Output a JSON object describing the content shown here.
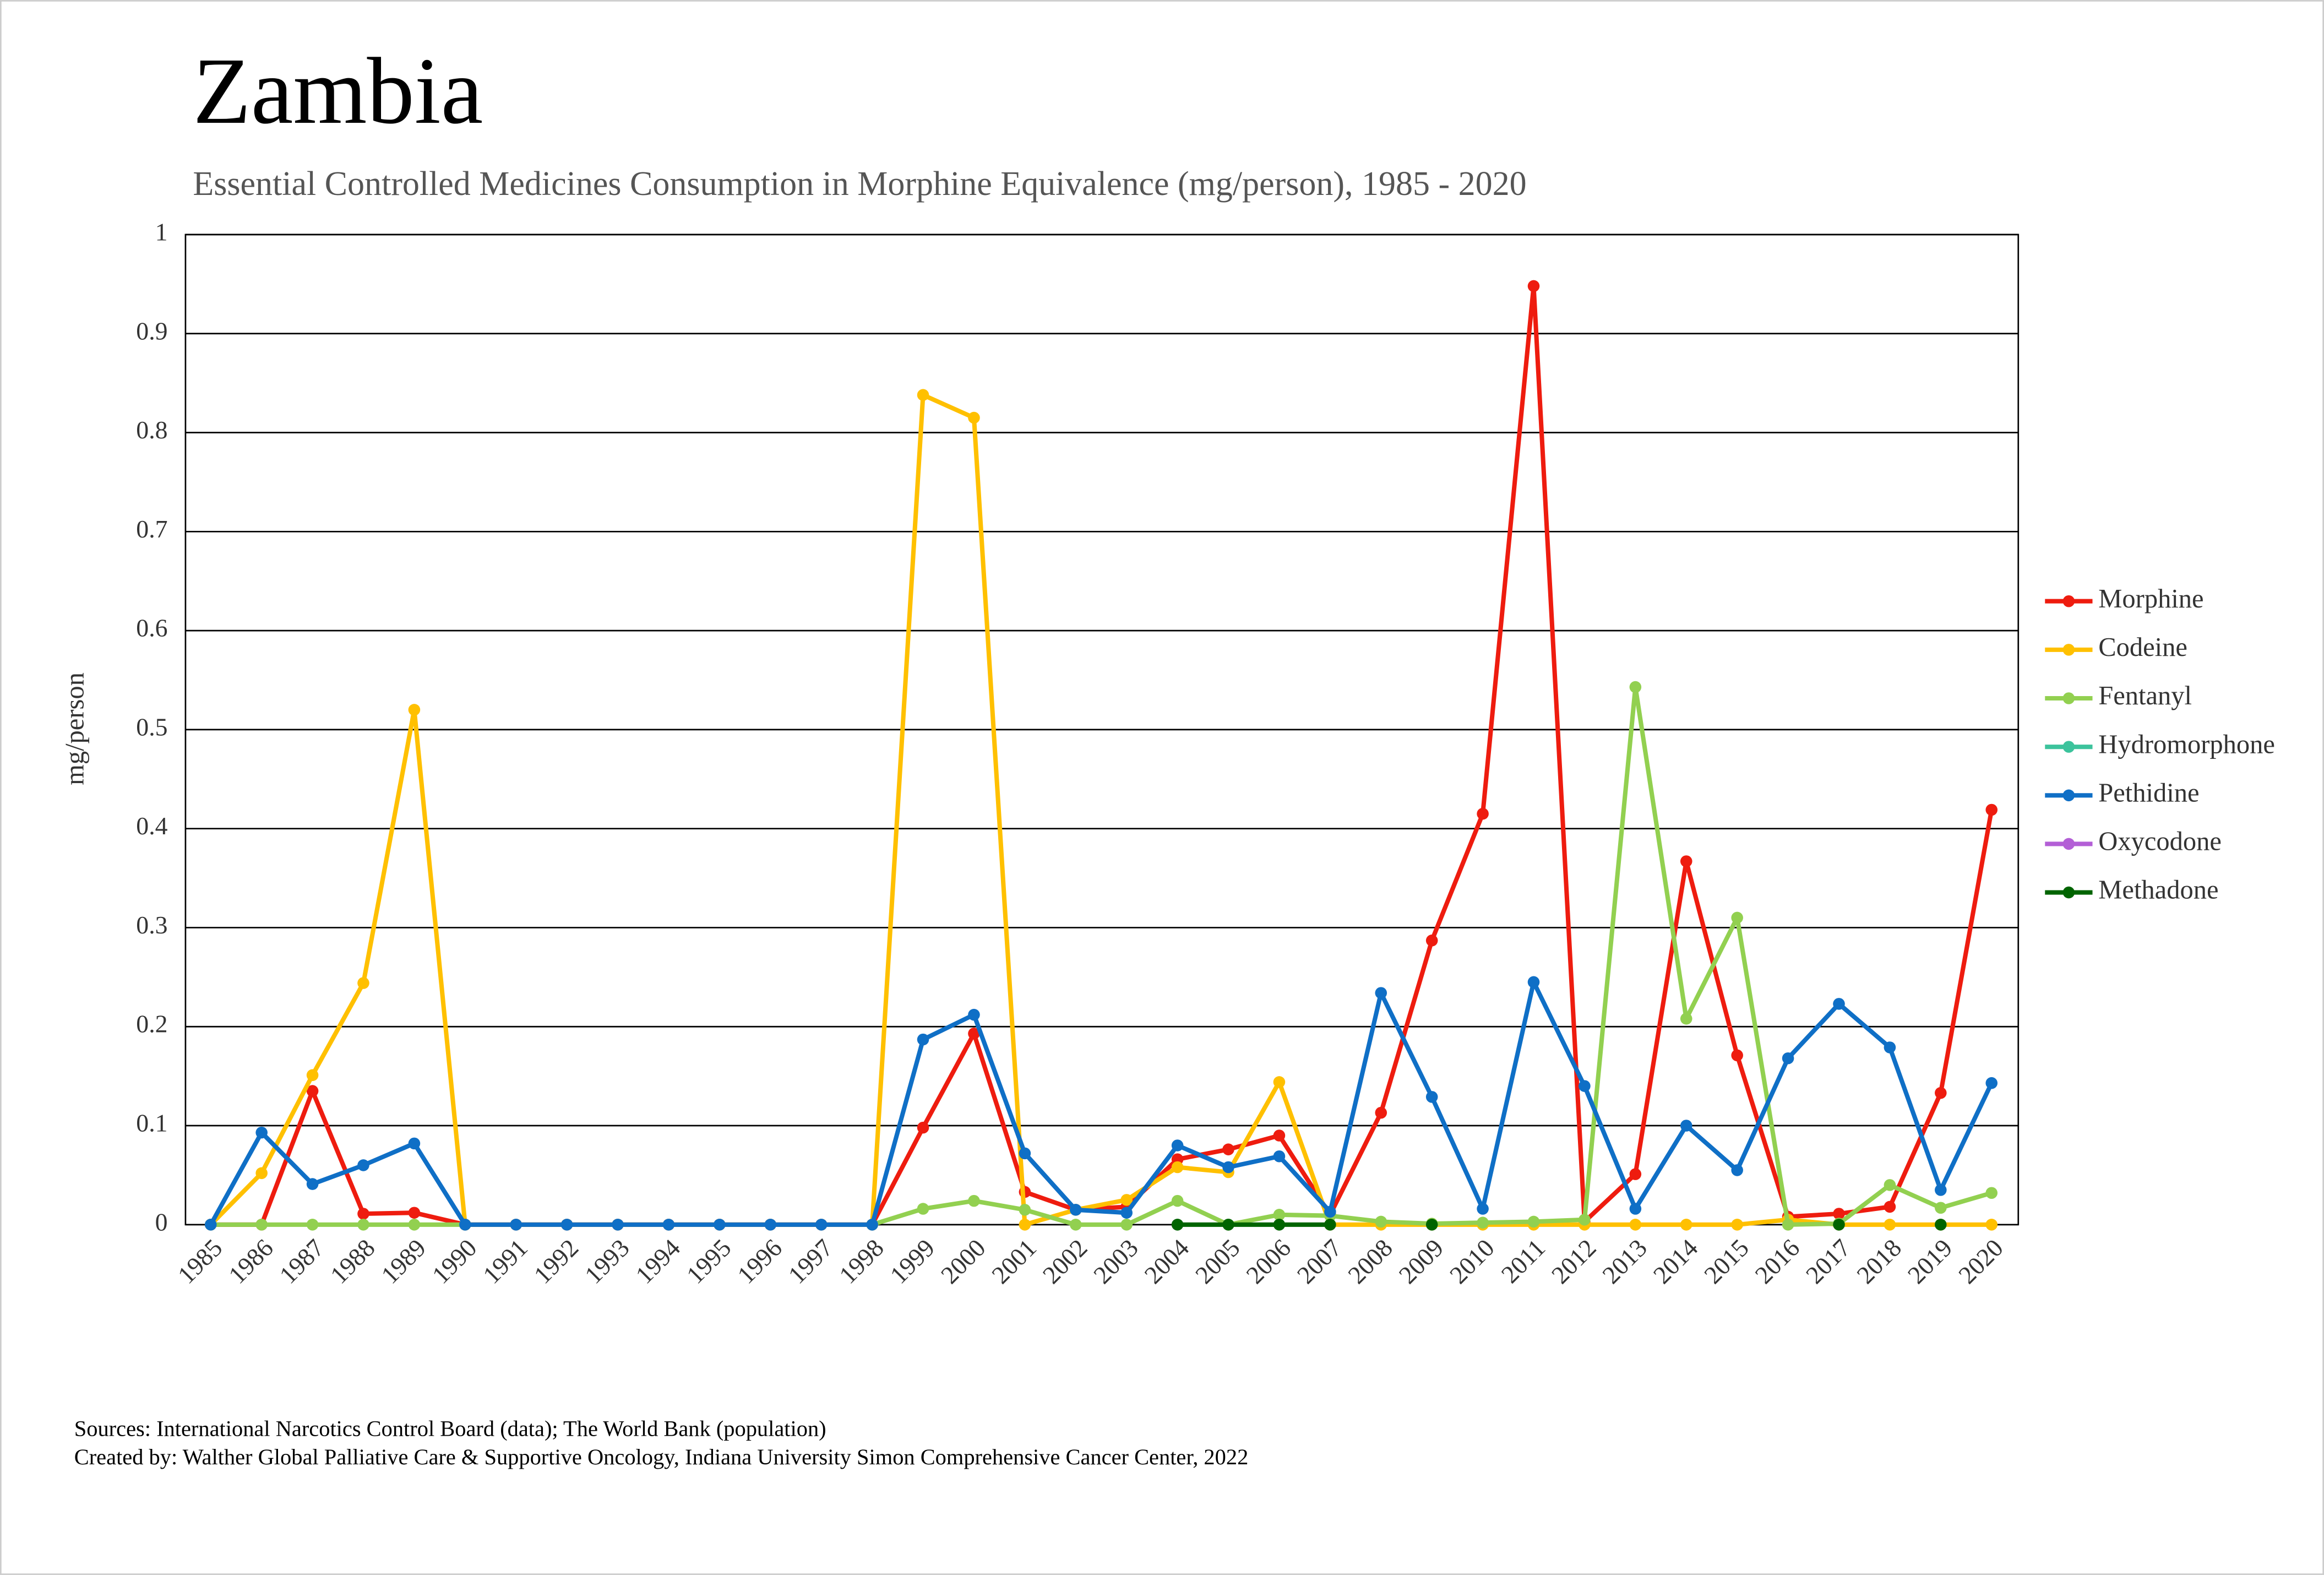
{
  "chart_data": {
    "type": "line",
    "title": "Zambia",
    "subtitle": "Essential Controlled Medicines Consumption in Morphine Equivalence (mg/person), 1985 - 2020",
    "y_label": "mg/person",
    "sources": [
      "Sources: International Narcotics Control Board (data); The World Bank (population)",
      "Created by: Walther Global Palliative Care & Supportive Oncology, Indiana University Simon Comprehensive Cancer Center, 2022"
    ],
    "categories": [
      "1985",
      "1986",
      "1987",
      "1988",
      "1989",
      "1990",
      "1991",
      "1992",
      "1993",
      "1994",
      "1995",
      "1996",
      "1997",
      "1998",
      "1999",
      "2000",
      "2001",
      "2002",
      "2003",
      "2004",
      "2005",
      "2006",
      "2007",
      "2008",
      "2009",
      "2010",
      "2011",
      "2012",
      "2013",
      "2014",
      "2015",
      "2016",
      "2017",
      "2018",
      "2019",
      "2020"
    ],
    "ylim": [
      0,
      1
    ],
    "yticks": [
      0,
      0.1,
      0.2,
      0.3,
      0.4,
      0.5,
      0.6,
      0.7,
      0.8,
      0.9,
      1
    ],
    "grid": true,
    "legend": "right",
    "series": [
      {
        "name": "Morphine",
        "color": "#ee1c0f",
        "values": [
          0,
          0,
          0.135,
          0.011,
          0.012,
          0,
          0,
          0,
          0,
          0,
          0,
          0,
          0,
          0,
          0.098,
          0.193,
          0.033,
          0.015,
          0.018,
          0.066,
          0.076,
          0.09,
          0.01,
          0.113,
          0.287,
          0.415,
          0.948,
          0.003,
          0.051,
          0.367,
          0.171,
          0.008,
          0.011,
          0.018,
          0.133,
          0.419
        ]
      },
      {
        "name": "Codeine",
        "color": "#ffc000",
        "values": [
          0,
          0.052,
          0.151,
          0.244,
          0.52,
          0,
          0,
          0,
          0,
          0,
          0,
          0,
          0,
          0,
          0.838,
          0.815,
          0,
          0.015,
          0.025,
          0.058,
          0.053,
          0.144,
          0,
          0,
          0,
          0,
          0,
          0,
          0,
          0,
          0,
          0.005,
          0,
          0,
          0,
          0
        ]
      },
      {
        "name": "Fentanyl",
        "color": "#92d050",
        "values": [
          0,
          0,
          0,
          0,
          0,
          0,
          null,
          null,
          null,
          null,
          null,
          null,
          null,
          0,
          0.016,
          0.024,
          0.015,
          0,
          0,
          0.024,
          0,
          0.01,
          0.009,
          0.003,
          0.001,
          0.002,
          0.003,
          0.005,
          0.543,
          0.208,
          0.31,
          0,
          0.001,
          0.04,
          0.017,
          0.032
        ]
      },
      {
        "name": "Hydromorphone",
        "color": "#3cc39c",
        "values": [
          null,
          null,
          null,
          null,
          null,
          null,
          null,
          null,
          null,
          null,
          null,
          null,
          null,
          null,
          null,
          null,
          null,
          null,
          null,
          null,
          null,
          null,
          null,
          null,
          null,
          null,
          null,
          null,
          null,
          null,
          null,
          null,
          null,
          null,
          null,
          null
        ]
      },
      {
        "name": "Pethidine",
        "color": "#0f6fc6",
        "values": [
          0,
          0.093,
          0.041,
          0.06,
          0.082,
          0,
          0,
          0,
          0,
          0,
          0,
          0,
          0,
          0,
          0.187,
          0.212,
          0.072,
          0.015,
          0.012,
          0.08,
          0.058,
          0.069,
          0.013,
          0.234,
          0.129,
          0.016,
          0.245,
          0.14,
          0.016,
          0.1,
          0.055,
          0.168,
          0.223,
          0.179,
          0.035,
          0.143
        ]
      },
      {
        "name": "Oxycodone",
        "color": "#b35fd6",
        "values": [
          null,
          null,
          null,
          null,
          null,
          null,
          null,
          null,
          null,
          null,
          null,
          null,
          null,
          null,
          null,
          null,
          null,
          null,
          null,
          null,
          null,
          null,
          null,
          null,
          null,
          null,
          null,
          null,
          null,
          null,
          null,
          null,
          null,
          null,
          null,
          null
        ]
      },
      {
        "name": "Methadone",
        "color": "#006400",
        "values": [
          null,
          null,
          null,
          null,
          null,
          null,
          null,
          null,
          null,
          null,
          null,
          null,
          null,
          null,
          null,
          null,
          null,
          null,
          null,
          0,
          0,
          0,
          0,
          null,
          0,
          null,
          null,
          null,
          null,
          null,
          null,
          null,
          0,
          null,
          0,
          null
        ]
      }
    ]
  }
}
